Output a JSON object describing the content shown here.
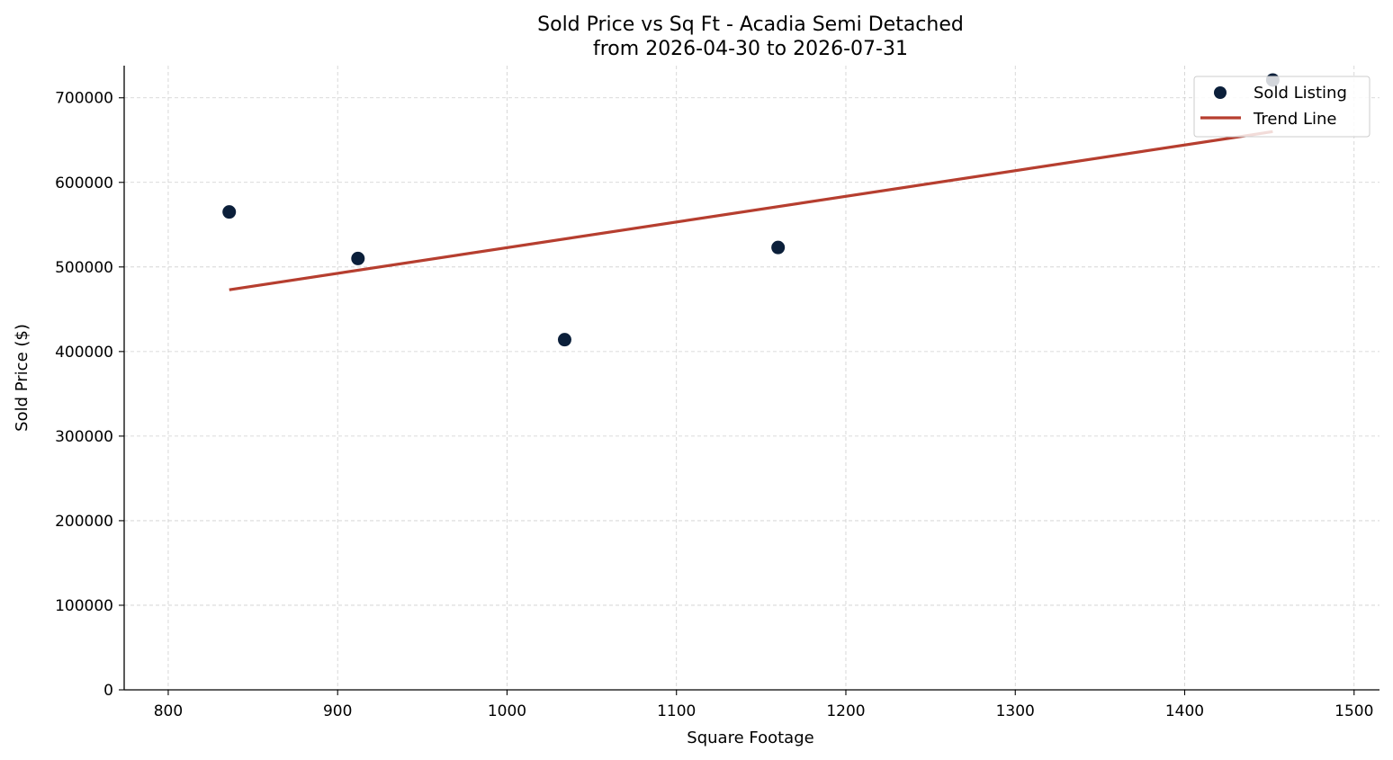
{
  "chart_data": {
    "type": "scatter",
    "title": "Sold Price vs Sq Ft - Acadia Semi Detached",
    "subtitle": "from 2026-04-30 to 2026-07-31",
    "xlabel": "Square Footage",
    "ylabel": "Sold Price ($)",
    "xlim": [
      774,
      1515
    ],
    "ylim": [
      0,
      738000
    ],
    "x_ticks": [
      800,
      900,
      1000,
      1100,
      1200,
      1300,
      1400,
      1500
    ],
    "y_ticks": [
      0,
      100000,
      200000,
      300000,
      400000,
      500000,
      600000,
      700000
    ],
    "x_tick_labels": [
      "800",
      "900",
      "1000",
      "1100",
      "1200",
      "1300",
      "1400",
      "1500"
    ],
    "y_tick_labels": [
      "0",
      "100000",
      "200000",
      "300000",
      "400000",
      "500000",
      "600000",
      "700000"
    ],
    "grid": true,
    "legend_position": "top-right",
    "series": [
      {
        "name": "Sold Listing",
        "kind": "scatter",
        "color": "#0b1f3a",
        "points": [
          {
            "x": 836,
            "y": 565000
          },
          {
            "x": 912,
            "y": 510000
          },
          {
            "x": 1034,
            "y": 414000
          },
          {
            "x": 1160,
            "y": 523000
          },
          {
            "x": 1452,
            "y": 721000
          }
        ]
      },
      {
        "name": "Trend Line",
        "kind": "line",
        "color": "#b63e2f",
        "points": [
          {
            "x": 836,
            "y": 473000
          },
          {
            "x": 1452,
            "y": 660000
          }
        ]
      }
    ]
  }
}
